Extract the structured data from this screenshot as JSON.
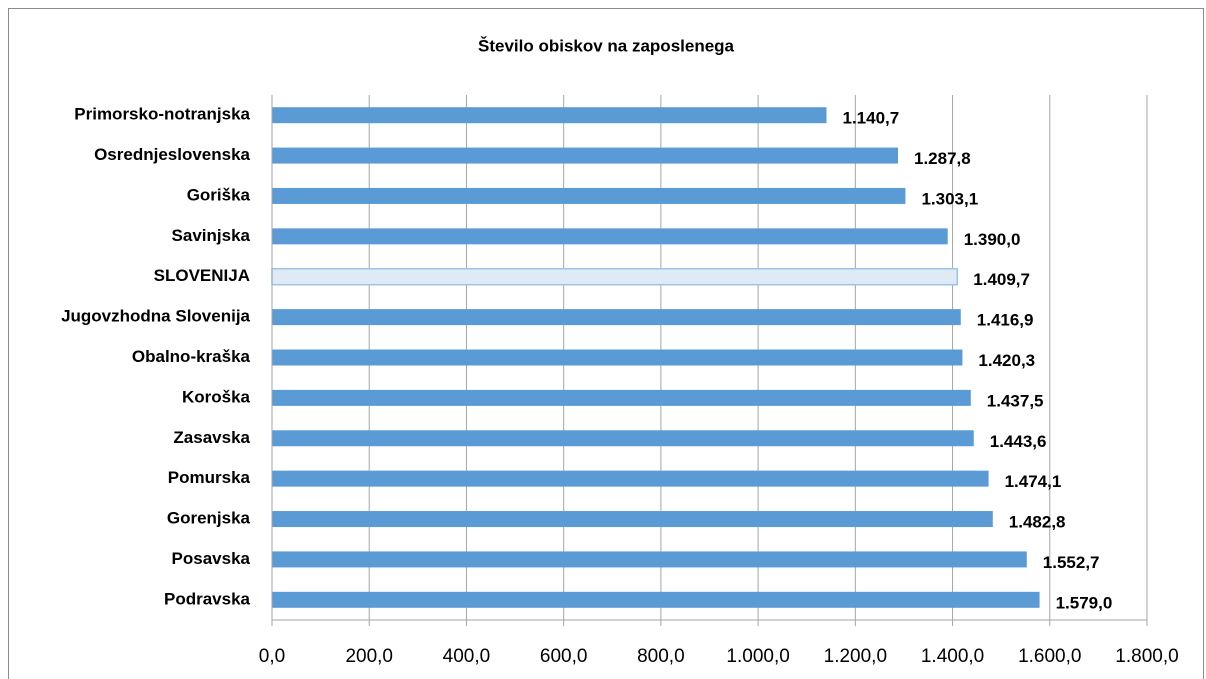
{
  "chart_data": {
    "type": "hbar",
    "title": "Število obiskov na zaposlenega",
    "categories": [
      "Primorsko-notranjska",
      "Osrednjeslovenska",
      "Goriška",
      "Savinjska",
      "SLOVENIJA",
      "Jugovzhodna Slovenija",
      "Obalno-kraška",
      "Koroška",
      "Zasavska",
      "Pomurska",
      "Gorenjska",
      "Posavska",
      "Podravska"
    ],
    "values": [
      1140.7,
      1287.8,
      1303.1,
      1390.0,
      1409.7,
      1416.9,
      1420.3,
      1437.5,
      1443.6,
      1474.1,
      1482.8,
      1552.7,
      1579.0
    ],
    "value_labels": [
      "1.140,7",
      "1.287,8",
      "1.303,1",
      "1.390,0",
      "1.409,7",
      "1.416,9",
      "1.420,3",
      "1.437,5",
      "1.443,6",
      "1.474,1",
      "1.482,8",
      "1.552,7",
      "1.579,0"
    ],
    "colors": [
      "#5b9bd5",
      "#5b9bd5",
      "#5b9bd5",
      "#5b9bd5",
      "#deebf7",
      "#5b9bd5",
      "#5b9bd5",
      "#5b9bd5",
      "#5b9bd5",
      "#5b9bd5",
      "#5b9bd5",
      "#5b9bd5",
      "#5b9bd5"
    ],
    "xlim": [
      0,
      1800
    ],
    "xticks": [
      {
        "value": 0,
        "label": "0,0"
      },
      {
        "value": 200,
        "label": "200,0"
      },
      {
        "value": 400,
        "label": "400,0"
      },
      {
        "value": 600,
        "label": "600,0"
      },
      {
        "value": 800,
        "label": "800,0"
      },
      {
        "value": 1000,
        "label": "1.000,0"
      },
      {
        "value": 1200,
        "label": "1.200,0"
      },
      {
        "value": 1400,
        "label": "1.400,0"
      },
      {
        "value": 1600,
        "label": "1.600,0"
      },
      {
        "value": 1800,
        "label": "1.800,0"
      }
    ],
    "grid": true
  }
}
